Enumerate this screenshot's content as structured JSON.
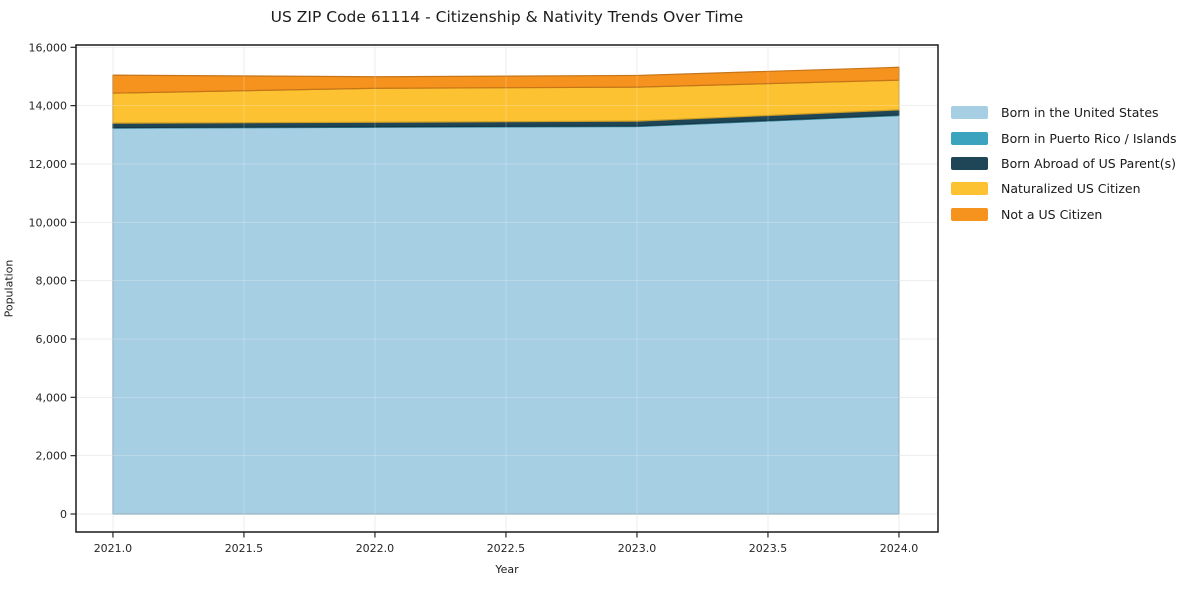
{
  "title": "US ZIP Code 61114 - Citizenship & Nativity Trends Over Time",
  "chart_data": {
    "type": "area",
    "stacked": true,
    "title": "US ZIP Code 61114 - Citizenship & Nativity Trends Over Time",
    "xlabel": "Year",
    "ylabel": "Population",
    "x": [
      2021,
      2022,
      2023,
      2024
    ],
    "series": [
      {
        "name": "Born in the United States",
        "color": "#a6cfe3",
        "values": [
          13230,
          13260,
          13285,
          13660
        ]
      },
      {
        "name": "Born in Puerto Rico / Islands",
        "color": "#3ba3bd",
        "values": [
          20,
          20,
          20,
          25
        ]
      },
      {
        "name": "Born Abroad of US Parent(s)",
        "color": "#1f4656",
        "values": [
          150,
          150,
          165,
          170
        ]
      },
      {
        "name": "Naturalized US Citizen",
        "color": "#fcc231",
        "values": [
          1030,
          1165,
          1165,
          1020
        ]
      },
      {
        "name": "Not a US Citizen",
        "color": "#f6921e",
        "values": [
          615,
          395,
          400,
          440
        ]
      }
    ],
    "x_tick_labels": [
      "2021.0",
      "2021.5",
      "2022.0",
      "2022.5",
      "2023.0",
      "2023.5",
      "2024.0"
    ],
    "x_tick_values": [
      2021,
      2021.5,
      2022,
      2022.5,
      2023,
      2023.5,
      2024
    ],
    "y_tick_labels": [
      "0",
      "2,000",
      "4,000",
      "6,000",
      "8,000",
      "10,000",
      "12,000",
      "14,000",
      "16,000"
    ],
    "y_tick_values": [
      0,
      2000,
      4000,
      6000,
      8000,
      10000,
      12000,
      14000,
      16000
    ],
    "xlim": [
      2020.859,
      2024.149
    ],
    "ylim": [
      -617,
      16079
    ],
    "grid": true,
    "legend_position": "right",
    "spine_color": "#1a1a1a",
    "grid_color": "#eaeaea",
    "tick_color": "#262626"
  }
}
